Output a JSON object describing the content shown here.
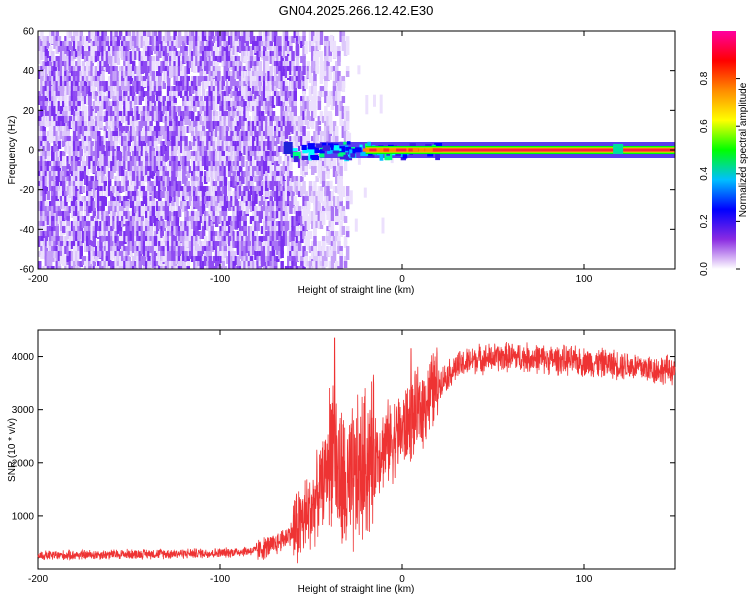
{
  "title": "GN04.2025.266.12.42.E30",
  "chart_data": [
    {
      "type": "heatmap",
      "name": "spectrogram",
      "xlabel": "Height of straight line (km)",
      "ylabel": "Frequency (Hz)",
      "xlim": [
        -200,
        150
      ],
      "ylim": [
        -60,
        60
      ],
      "xticks": [
        -200,
        -100,
        0,
        100
      ],
      "yticks": [
        -60,
        -40,
        -20,
        0,
        20,
        40,
        60
      ],
      "xtick_labels": [
        "-200",
        "-100",
        "0",
        "100"
      ],
      "ytick_labels": [
        "-60",
        "-40",
        "-20",
        "0",
        "20",
        "40",
        "60"
      ],
      "colorbar": {
        "label": "Normalized spectral amplitude",
        "range": [
          0,
          1
        ],
        "ticks": [
          0.0,
          0.2,
          0.4,
          0.6,
          0.8
        ],
        "tick_labels": [
          "0.0",
          "0.2",
          "0.4",
          "0.6",
          "0.8"
        ],
        "colors": [
          "#ffffff",
          "#8a2be2",
          "#0000ff",
          "#00bfff",
          "#00ff00",
          "#ffff00",
          "#ff8c00",
          "#ff0000",
          "#ff00a0"
        ]
      },
      "features": [
        {
          "region": "noise",
          "x_range": [
            -200,
            -40
          ],
          "y_range": [
            -60,
            60
          ],
          "level": 0.15
        },
        {
          "region": "carrier",
          "x_range": [
            -60,
            150
          ],
          "y_center": 0,
          "level": 1.0
        }
      ]
    },
    {
      "type": "line",
      "name": "snr",
      "xlabel": "Height of straight line (km)",
      "ylabel": "SNR (10 * v/v)",
      "xlim": [
        -200,
        150
      ],
      "ylim": [
        0,
        4500
      ],
      "xticks": [
        -200,
        -100,
        0,
        100
      ],
      "yticks": [
        1000,
        2000,
        3000,
        4000
      ],
      "xtick_labels": [
        "-200",
        "-100",
        "0",
        "100"
      ],
      "ytick_labels": [
        "1000",
        "2000",
        "3000",
        "4000"
      ],
      "color": "#ee3333",
      "profile_x": [
        -200,
        -150,
        -100,
        -80,
        -70,
        -60,
        -50,
        -45,
        -40,
        -38,
        -35,
        -30,
        -25,
        -20,
        -10,
        0,
        10,
        20,
        30,
        40,
        60,
        80,
        100,
        120,
        140,
        150
      ],
      "profile_y": [
        250,
        280,
        300,
        350,
        450,
        700,
        1100,
        1500,
        2000,
        2600,
        1700,
        1400,
        1700,
        2000,
        2300,
        2600,
        3000,
        3500,
        3800,
        3950,
        4000,
        3950,
        3900,
        3850,
        3750,
        3750
      ],
      "noise_amplitude": 250,
      "spikes": [
        {
          "x": -37,
          "y": 4350
        },
        {
          "x": 5,
          "y": 4150
        }
      ]
    }
  ]
}
